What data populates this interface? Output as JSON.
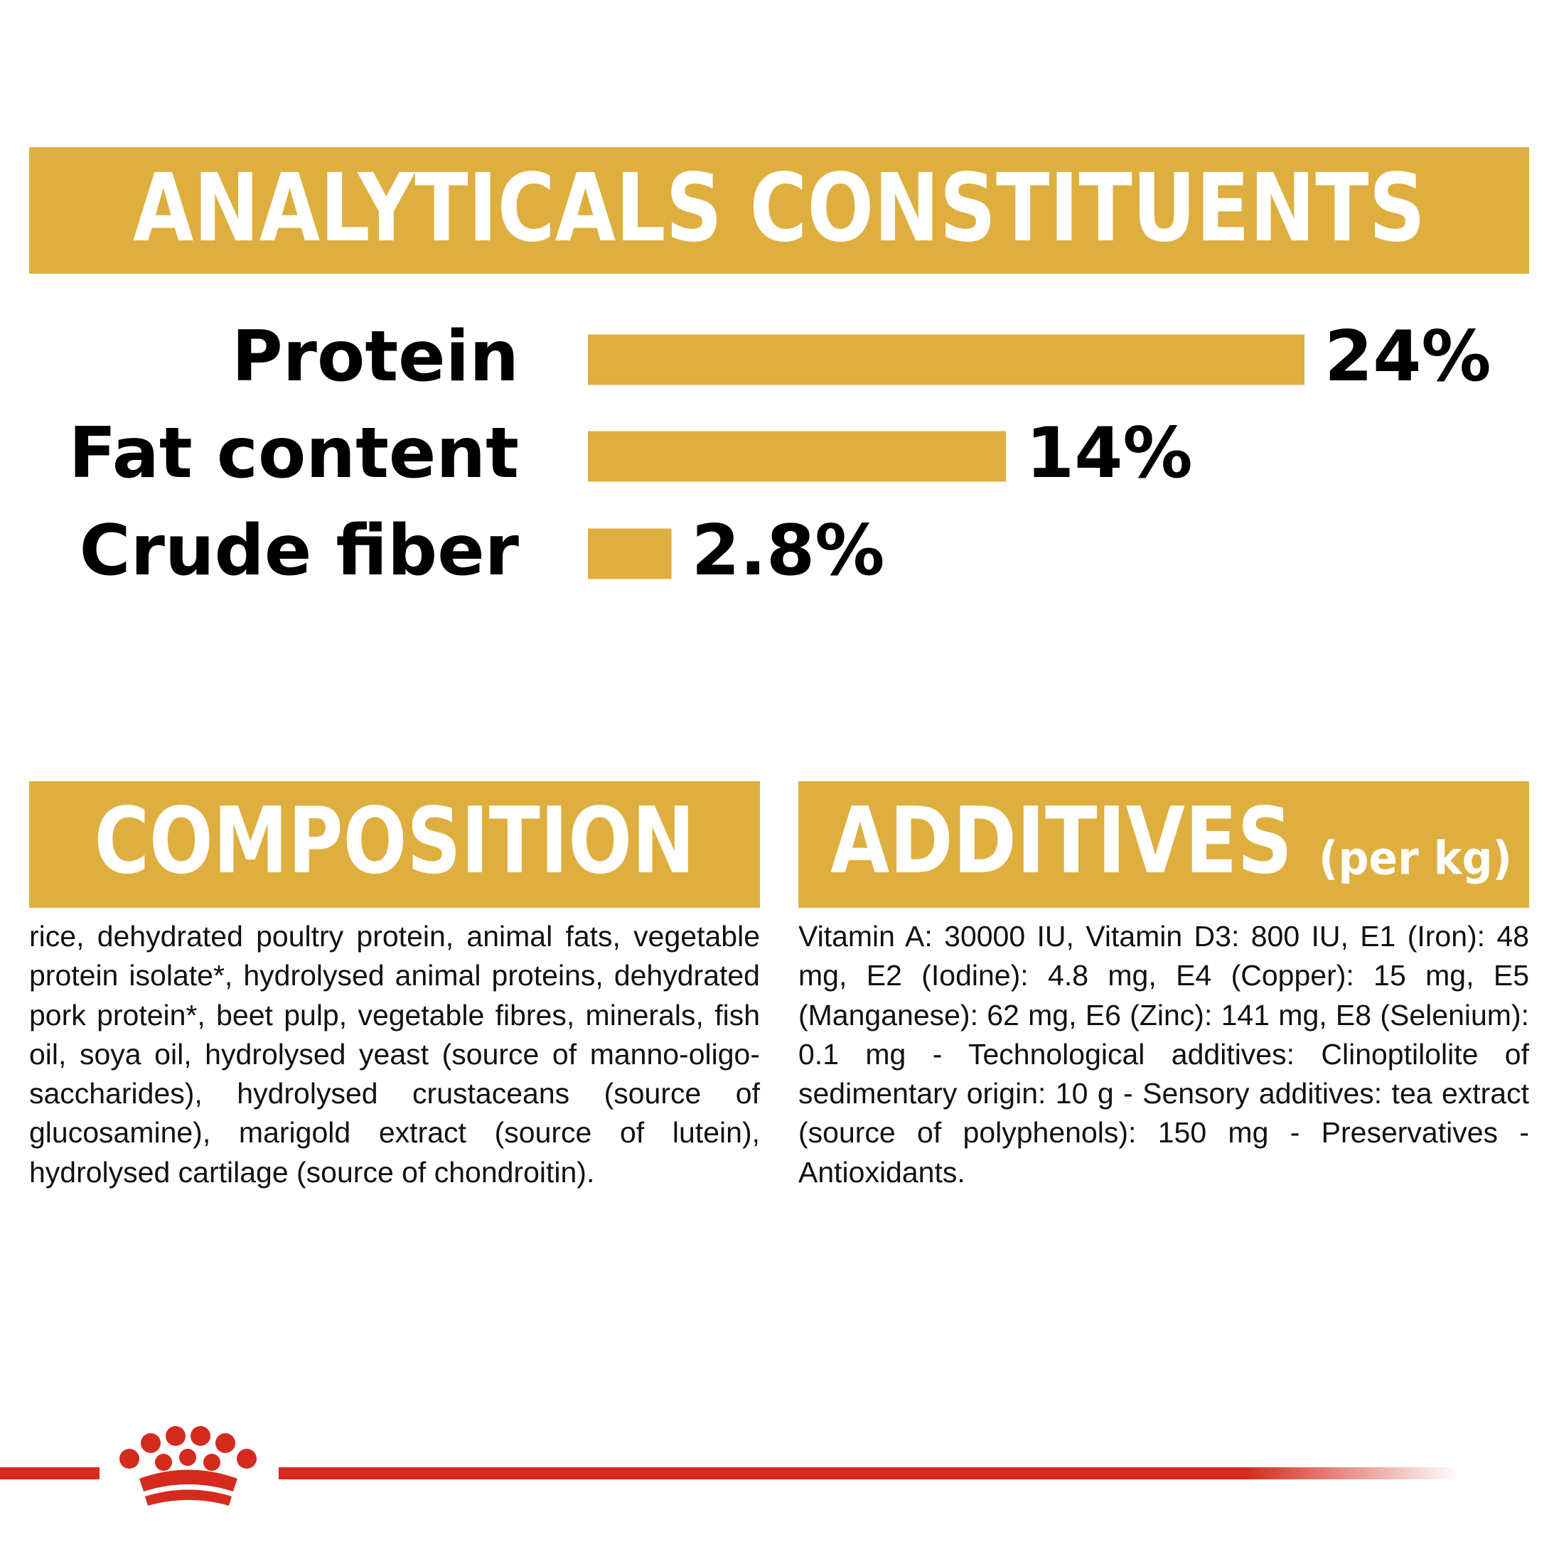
{
  "chart_data": {
    "type": "bar",
    "orientation": "horizontal",
    "title": "ANALYTICALS CONSTITUENTS",
    "categories": [
      "Protein",
      "Fat content",
      "Crude fiber"
    ],
    "values": [
      24,
      14,
      2.8
    ],
    "value_labels": [
      "24%",
      "14%",
      "2.8%"
    ],
    "color": "#deaf3f"
  },
  "composition": {
    "title": "COMPOSITION",
    "text": "rice, dehydrated poultry protein, animal fats, vegetable protein isolate*, hydrolysed animal proteins, dehydrated pork protein*, beet pulp, vegetable fibres, minerals, fish oil, soya oil, hydrolysed yeast (source of manno-oligo-saccharides), hydrolysed crustaceans (source of glucosamine), marigold extract (source of lutein), hydrolysed cartilage (source of chondroitin)."
  },
  "additives": {
    "title": "ADDITIVES",
    "unit": "(per kg)",
    "text": "Vitamin A: 30000 IU, Vitamin D3: 800 IU, E1 (Iron): 48 mg, E2 (Iodine): 4.8 mg, E4 (Copper): 15 mg, E5 (Manganese): 62 mg, E6 (Zinc): 141 mg, E8 (Selenium): 0.1 mg - Technological additives: Clinoptilolite of sedimentary origin: 10 g - Sensory additives: tea extract (source of polyphenols): 150 mg - Preservatives - Antioxidants."
  }
}
